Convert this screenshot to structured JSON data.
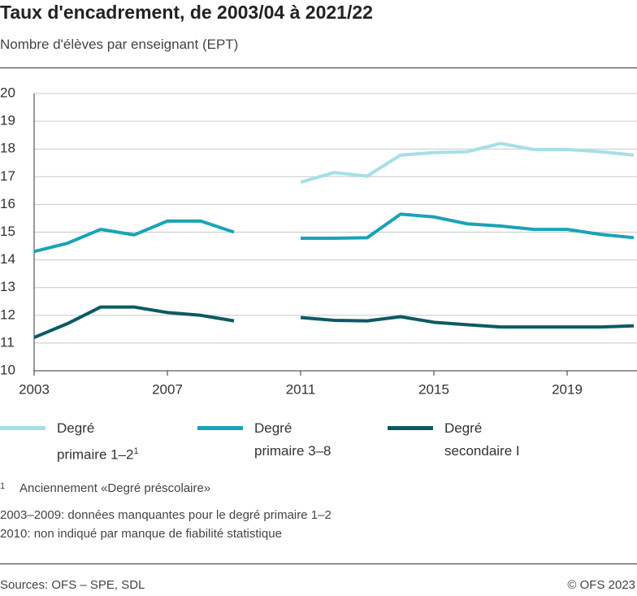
{
  "chart_data": {
    "type": "line",
    "title": "Taux d'encadrement, de 2003/04 à 2021/22",
    "subtitle": "Nombre d'élèves par enseignant (EPT)",
    "x": [
      2003,
      2004,
      2005,
      2006,
      2007,
      2008,
      2009,
      2010,
      2011,
      2012,
      2013,
      2014,
      2015,
      2016,
      2017,
      2018,
      2019,
      2020,
      2021
    ],
    "series": [
      {
        "name": "Degré primaire 1–2",
        "footnote_marker": "1",
        "color": "#a6dfe6",
        "values": [
          null,
          null,
          null,
          null,
          null,
          null,
          null,
          null,
          16.8,
          17.15,
          17.02,
          17.78,
          17.87,
          17.9,
          18.2,
          17.98,
          17.98,
          17.9,
          17.78
        ]
      },
      {
        "name": "Degré primaire 3–8",
        "color": "#1aa3b8",
        "values": [
          14.3,
          14.6,
          15.1,
          14.9,
          15.4,
          15.4,
          15.0,
          null,
          14.78,
          14.78,
          14.8,
          15.65,
          15.55,
          15.3,
          15.22,
          15.1,
          15.1,
          14.92,
          14.8
        ]
      },
      {
        "name": "Degré secondaire I",
        "color": "#0b5a63",
        "values": [
          11.2,
          11.7,
          12.3,
          12.3,
          12.1,
          12.0,
          11.8,
          null,
          11.92,
          11.82,
          11.8,
          11.95,
          11.75,
          11.66,
          11.58,
          11.58,
          11.58,
          11.58,
          11.62
        ]
      }
    ],
    "xlim": [
      2003,
      2021
    ],
    "xticks": [
      2003,
      2007,
      2011,
      2015,
      2019
    ],
    "ylim": [
      10,
      20
    ],
    "yticks": [
      10,
      11,
      12,
      13,
      14,
      15,
      16,
      17,
      18,
      19,
      20
    ],
    "grid": true,
    "footnote": {
      "marker": "1",
      "text": "Anciennement «Degré préscolaire»"
    },
    "notes": [
      "2003–2009: données manquantes pour le degré primaire 1–2",
      "2010: non indiqué par manque de fiabilité statistique"
    ],
    "source": "Sources: OFS – SPE, SDL",
    "copyright": "© OFS 2023"
  }
}
